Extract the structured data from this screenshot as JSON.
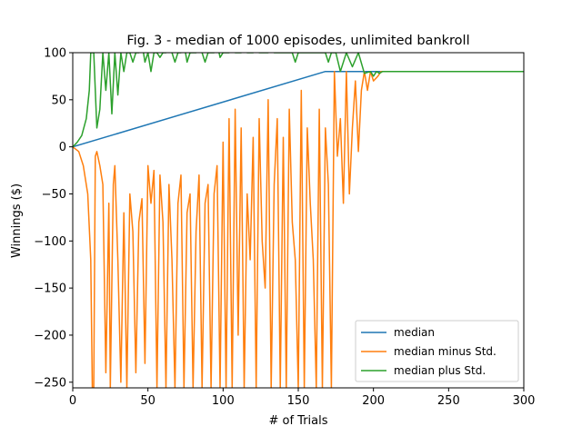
{
  "chart_data": {
    "type": "line",
    "title": "Fig. 3 - median of 1000 episodes, unlimited bankroll",
    "xlabel": "# of Trials",
    "ylabel": "Winnings ($)",
    "xlim": [
      0,
      300
    ],
    "ylim": [
      -256,
      100
    ],
    "xticks": [
      0,
      50,
      100,
      150,
      200,
      250,
      300
    ],
    "yticks": [
      -250,
      -200,
      -150,
      -100,
      -50,
      0,
      50,
      100
    ],
    "grid": false,
    "legend_position": "lower-right",
    "series": [
      {
        "name": "median",
        "color": "#1f77b4",
        "x": [
          0,
          168,
          300
        ],
        "y": [
          0,
          80,
          80
        ]
      },
      {
        "name": "median minus Std.",
        "color": "#ff7f0e",
        "x": [
          0,
          4,
          7,
          10,
          12,
          13,
          14,
          15,
          16,
          18,
          20,
          22,
          24,
          25,
          27,
          28,
          30,
          32,
          34,
          36,
          38,
          40,
          42,
          44,
          46,
          48,
          50,
          52,
          54,
          56,
          58,
          60,
          62,
          64,
          66,
          68,
          70,
          72,
          74,
          76,
          78,
          80,
          82,
          84,
          86,
          88,
          90,
          92,
          94,
          96,
          98,
          100,
          102,
          104,
          106,
          108,
          110,
          112,
          114,
          116,
          118,
          120,
          122,
          124,
          126,
          128,
          130,
          132,
          134,
          136,
          138,
          140,
          142,
          144,
          146,
          148,
          150,
          152,
          154,
          156,
          158,
          160,
          162,
          164,
          166,
          168,
          170,
          172,
          174,
          176,
          178,
          180,
          182,
          184,
          186,
          188,
          190,
          192,
          194,
          196,
          198,
          200,
          203,
          205,
          208,
          212,
          220,
          300
        ],
        "y": [
          0,
          -5,
          -20,
          -50,
          -120,
          -256,
          -256,
          -10,
          -5,
          -20,
          -40,
          -240,
          -60,
          -256,
          -40,
          -20,
          -120,
          -250,
          -70,
          -256,
          -50,
          -90,
          -240,
          -80,
          -55,
          -230,
          -20,
          -60,
          -25,
          -256,
          -30,
          -80,
          -256,
          -40,
          -120,
          -256,
          -60,
          -30,
          -256,
          -70,
          -50,
          -256,
          -90,
          -30,
          -256,
          -60,
          -40,
          -256,
          -50,
          -20,
          -256,
          5,
          -256,
          30,
          -256,
          40,
          -200,
          20,
          -256,
          -50,
          -120,
          10,
          -256,
          30,
          -100,
          -150,
          50,
          -256,
          -40,
          30,
          -256,
          10,
          -256,
          40,
          -80,
          -120,
          -256,
          60,
          -256,
          20,
          -60,
          -120,
          -256,
          40,
          -256,
          20,
          -40,
          -256,
          80,
          -10,
          30,
          -60,
          80,
          -50,
          20,
          70,
          -5,
          60,
          80,
          60,
          80,
          70,
          75,
          80,
          80,
          80,
          80,
          80
        ]
      },
      {
        "name": "median plus Std.",
        "color": "#2ca02c",
        "x": [
          0,
          3,
          6,
          9,
          11,
          12,
          14,
          16,
          18,
          20,
          22,
          24,
          26,
          28,
          30,
          32,
          34,
          36,
          38,
          40,
          42,
          44,
          46,
          48,
          50,
          52,
          54,
          56,
          58,
          60,
          62,
          64,
          66,
          68,
          70,
          72,
          74,
          76,
          78,
          80,
          82,
          84,
          86,
          88,
          90,
          92,
          94,
          96,
          98,
          100,
          102,
          104,
          106,
          108,
          110,
          112,
          114,
          116,
          118,
          120,
          122,
          124,
          126,
          128,
          130,
          132,
          134,
          136,
          138,
          140,
          142,
          144,
          146,
          148,
          150,
          152,
          154,
          156,
          158,
          160,
          162,
          164,
          166,
          168,
          170,
          172,
          175,
          178,
          182,
          186,
          190,
          194,
          198,
          200,
          202,
          204,
          206,
          210,
          220,
          300
        ],
        "y": [
          0,
          5,
          12,
          30,
          60,
          100,
          100,
          20,
          40,
          100,
          60,
          100,
          35,
          100,
          55,
          100,
          80,
          100,
          100,
          90,
          100,
          100,
          110,
          90,
          100,
          80,
          100,
          100,
          95,
          100,
          100,
          110,
          100,
          90,
          100,
          100,
          110,
          90,
          100,
          100,
          100,
          110,
          100,
          90,
          100,
          100,
          100,
          110,
          95,
          100,
          100,
          100,
          110,
          100,
          100,
          100,
          110,
          100,
          100,
          100,
          110,
          100,
          100,
          100,
          100,
          110,
          100,
          100,
          100,
          100,
          100,
          100,
          100,
          90,
          100,
          100,
          100,
          100,
          100,
          100,
          100,
          100,
          100,
          100,
          90,
          100,
          100,
          80,
          100,
          85,
          100,
          78,
          80,
          75,
          80,
          78,
          80,
          80,
          80,
          80
        ]
      }
    ]
  }
}
